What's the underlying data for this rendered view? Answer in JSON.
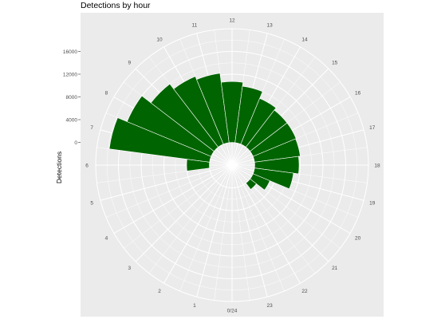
{
  "chart_data": {
    "type": "bar",
    "coord": "polar",
    "title": "Detections by hour",
    "xlabel": "",
    "ylabel": "Detections",
    "categories": [
      1,
      2,
      3,
      4,
      5,
      6,
      7,
      8,
      9,
      10,
      11,
      12,
      13,
      14,
      15,
      16,
      17,
      18,
      19,
      20,
      21,
      22,
      23,
      24
    ],
    "values": [
      0,
      0,
      0,
      0,
      0,
      4000,
      17800,
      16000,
      14000,
      12900,
      12300,
      10700,
      10000,
      8700,
      8200,
      8200,
      8100,
      7800,
      6900,
      3200,
      1400,
      0,
      0,
      0
    ],
    "theta_tick_labels": [
      "0/24",
      "1",
      "2",
      "3",
      "4",
      "5",
      "6",
      "7",
      "8",
      "9",
      "10",
      "11",
      "12",
      "13",
      "14",
      "15",
      "16",
      "17",
      "18",
      "19",
      "20",
      "21",
      "22",
      "23"
    ],
    "r_ticks": [
      0,
      4000,
      8000,
      12000,
      16000
    ],
    "r_tick_labels": [
      "0",
      "4000",
      "8000",
      "12000",
      "16000"
    ],
    "ylim": [
      -4000,
      20000
    ],
    "fill_color": "#006400",
    "bar_outline_color": "#ffffff",
    "panel_background": "#ebebeb",
    "grid_color": "#ffffff",
    "grid": true,
    "legend": "none"
  }
}
